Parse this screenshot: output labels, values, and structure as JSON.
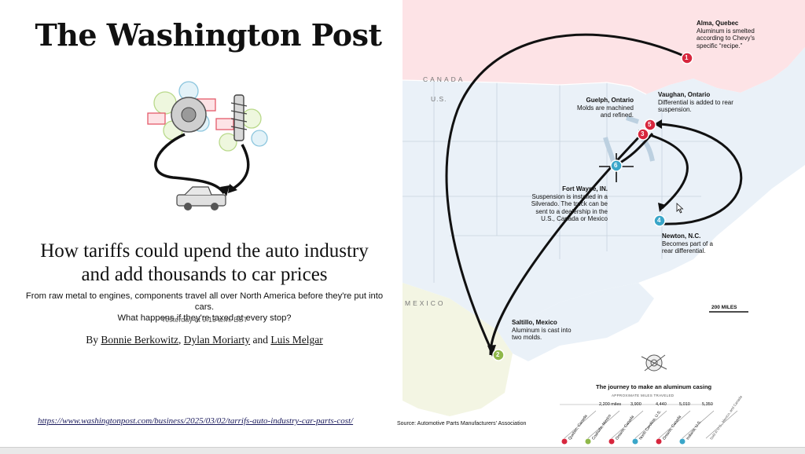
{
  "article": {
    "masthead": "The Washington Post",
    "headline_line1": "How tariffs could upend the auto industry",
    "headline_line2": "and add thousands to car prices",
    "dek_line1": "From raw metal to engines, components travel all over North America before they're put into cars.",
    "dek_line2": "What happens if they're taxed at every stop?",
    "timestamp": "Yesterday at 9:15 a.m. EST",
    "byline_prefix": "By",
    "author1": "Bonnie Berkowitz",
    "author2": "Dylan Moriarty",
    "author_and": "and",
    "author3": "Luis Melgar",
    "url": "https://www.washingtonpost.com/business/2025/03/02/tarrifs-auto-industry-car-parts-cost/"
  },
  "map": {
    "country_canada": "CANADA",
    "country_us": "U.S.",
    "country_mexico": "MEXICO",
    "stops": [
      {
        "num": "1",
        "title": "Alma, Quebec",
        "desc": "Aluminum is smelted according to Chevy's specific “recipe.”",
        "color": "#d7263d"
      },
      {
        "num": "2",
        "title": "Saltillo, Mexico",
        "desc": "Aluminum is cast into two molds.",
        "color": "#8fb84a"
      },
      {
        "num": "3",
        "title": "Guelph, Ontario",
        "desc": "Molds are machined and refined.",
        "color": "#d7263d"
      },
      {
        "num": "4",
        "title": "Newton, N.C.",
        "desc": "Becomes part of a rear differential.",
        "color": "#3aa6c9"
      },
      {
        "num": "5",
        "title": "Vaughan, Ontario",
        "desc": "Differential is added to rear suspension.",
        "color": "#d7263d"
      },
      {
        "num": "6",
        "title": "Fort Wayne, IN.",
        "desc": "Suspension is installed in a Silverado. The truck can be sent to a dealership in the U.S., Canada or Mexico",
        "color": "#3aa6c9"
      }
    ],
    "scale_label": "200 MILES",
    "source": "Source: Automotive Parts Manufacturers' Association"
  },
  "journey": {
    "title": "The journey to make an aluminum casing",
    "subtitle": "APPROXIMATE MILES TRAVELED",
    "miles": [
      "2,200 miles",
      "3,900",
      "4,440",
      "5,010",
      "5,350"
    ],
    "stop_labels": [
      "Quebec, Canada",
      "Coahuila, Mexico",
      "Ontario, Canada",
      "North Carolina, U.S.",
      "Ontario, Canada",
      "Indiana, U.S.",
      "Sold in U.S., Mexico, and Canada"
    ]
  }
}
